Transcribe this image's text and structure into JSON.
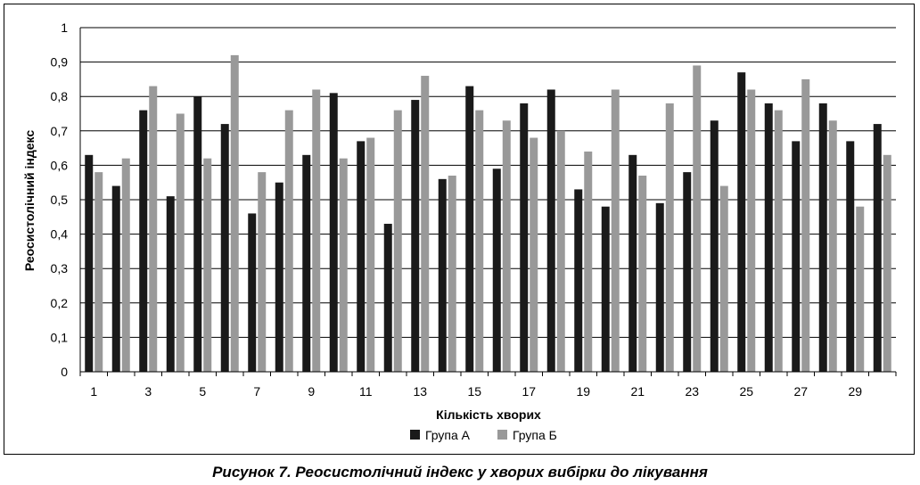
{
  "caption": "Рисунок 7. Реосистолічний індекс у хворих вибірки до лікування",
  "chart_data": {
    "type": "bar",
    "xlabel": "Кількість хворих",
    "ylabel": "Реосистолічний індекс",
    "ylim": [
      0,
      1
    ],
    "yticks": [
      "0",
      "0,1",
      "0,2",
      "0,3",
      "0,4",
      "0,5",
      "0,6",
      "0,7",
      "0,8",
      "0,9",
      "1"
    ],
    "grid": true,
    "legend_position": "bottom",
    "categories": [
      1,
      2,
      3,
      4,
      5,
      6,
      7,
      8,
      9,
      10,
      11,
      12,
      13,
      14,
      15,
      16,
      17,
      18,
      19,
      20,
      21,
      22,
      23,
      24,
      25,
      26,
      27,
      28,
      29,
      30
    ],
    "xtick_labels": [
      "1",
      "",
      "3",
      "",
      "5",
      "",
      "7",
      "",
      "9",
      "",
      "11",
      "",
      "13",
      "",
      "15",
      "",
      "17",
      "",
      "19",
      "",
      "21",
      "",
      "23",
      "",
      "25",
      "",
      "27",
      "",
      "29",
      ""
    ],
    "series": [
      {
        "name": "Група А",
        "color": "#1a1a1a",
        "values": [
          0.63,
          0.54,
          0.76,
          0.51,
          0.8,
          0.72,
          0.46,
          0.55,
          0.63,
          0.81,
          0.67,
          0.43,
          0.79,
          0.56,
          0.83,
          0.59,
          0.78,
          0.82,
          0.53,
          0.48,
          0.63,
          0.49,
          0.58,
          0.73,
          0.87,
          0.78,
          0.67,
          0.78,
          0.67,
          0.72
        ]
      },
      {
        "name": "Група Б",
        "color": "#999999",
        "values": [
          0.58,
          0.62,
          0.83,
          0.75,
          0.62,
          0.92,
          0.58,
          0.76,
          0.82,
          0.62,
          0.68,
          0.76,
          0.86,
          0.57,
          0.76,
          0.73,
          0.68,
          0.7,
          0.64,
          0.82,
          0.57,
          0.78,
          0.89,
          0.54,
          0.82,
          0.76,
          0.85,
          0.73,
          0.48,
          0.63
        ]
      }
    ]
  }
}
